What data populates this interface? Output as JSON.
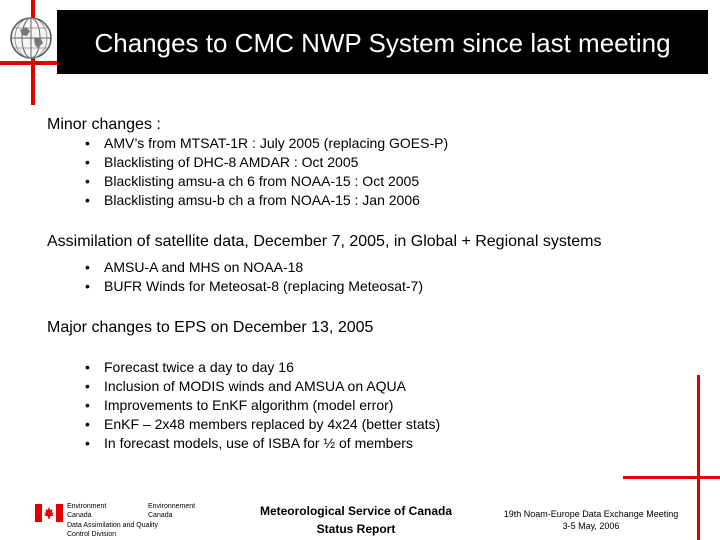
{
  "header": {
    "title": "Changes to CMC NWP System since last meeting"
  },
  "sections": [
    {
      "heading": "Minor changes :",
      "items": [
        "AMV’s from MTSAT-1R : July 2005 (replacing GOES-P)",
        "Blacklisting of DHC-8 AMDAR : Oct 2005",
        "Blacklisting amsu-a ch 6 from NOAA-15 : Oct 2005",
        "Blacklisting amsu-b ch a from NOAA-15 : Jan 2006"
      ]
    },
    {
      "heading": "Assimilation of satellite data, December 7, 2005, in Global + Regional systems",
      "items": [
        "AMSU-A and MHS on NOAA-18",
        "BUFR Winds for Meteosat-8 (replacing Meteosat-7)"
      ]
    },
    {
      "heading": "Major changes to EPS on December 13, 2005",
      "items": [
        "Forecast twice a day to day 16",
        "Inclusion of MODIS winds and AMSUA on AQUA",
        "Improvements to EnKF algorithm (model error)",
        "EnKF – 2x48 members replaced by 4x24 (better stats)",
        "In forecast models, use of ISBA for ½ of members"
      ]
    }
  ],
  "footer": {
    "env_en_1": "Environment",
    "env_en_2": "Canada",
    "env_fr_1": "Environnement",
    "env_fr_2": "Canada",
    "division_1": "Data Assimilation and Quality",
    "division_2": "Control Division",
    "msc_line1": "Meteorological Service of Canada",
    "msc_line2": "Status Report",
    "meeting_line1": "19th Noam-Europe Data Exchange Meeting",
    "meeting_line2": "3-5 May, 2006"
  },
  "colors": {
    "accent_red": "#e00000",
    "title_bg": "#000000",
    "title_text": "#ffffff"
  },
  "icons": {
    "globe": "globe-logo-icon",
    "flag": "canada-flag-icon"
  }
}
